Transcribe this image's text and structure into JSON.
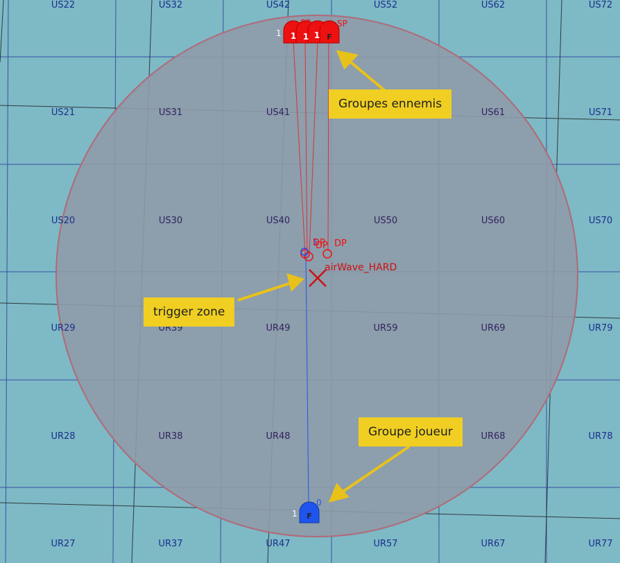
{
  "map": {
    "colors": {
      "sea": "#7eb9c6",
      "zone_fill": "#8f9ba8",
      "zone_border": "#b06a78",
      "grid_blue": "#2b3f9a",
      "grid_black": "#1c1c1c",
      "label_top": "#1a2f8a",
      "label_inside": "#32235e",
      "enemy_red": "#ee1111",
      "player_blue": "#1f55ee",
      "callout_bg": "#f0cf22",
      "callout_arrow": "#e8c21a"
    },
    "grid_labels": [
      {
        "text": "US22",
        "col": 0,
        "row": 0
      },
      {
        "text": "US32",
        "col": 1,
        "row": 0
      },
      {
        "text": "US42",
        "col": 2,
        "row": 0
      },
      {
        "text": "US52",
        "col": 3,
        "row": 0
      },
      {
        "text": "US62",
        "col": 4,
        "row": 0
      },
      {
        "text": "US72",
        "col": 5,
        "row": 0
      },
      {
        "text": "US21",
        "col": 0,
        "row": 1
      },
      {
        "text": "US31",
        "col": 1,
        "row": 1
      },
      {
        "text": "US41",
        "col": 2,
        "row": 1
      },
      {
        "text": "US51",
        "col": 3,
        "row": 1
      },
      {
        "text": "US61",
        "col": 4,
        "row": 1
      },
      {
        "text": "US71",
        "col": 5,
        "row": 1
      },
      {
        "text": "US20",
        "col": 0,
        "row": 2
      },
      {
        "text": "US30",
        "col": 1,
        "row": 2
      },
      {
        "text": "US40",
        "col": 2,
        "row": 2
      },
      {
        "text": "US50",
        "col": 3,
        "row": 2
      },
      {
        "text": "US60",
        "col": 4,
        "row": 2
      },
      {
        "text": "US70",
        "col": 5,
        "row": 2
      },
      {
        "text": "UR29",
        "col": 0,
        "row": 3
      },
      {
        "text": "UR39",
        "col": 1,
        "row": 3
      },
      {
        "text": "UR49",
        "col": 2,
        "row": 3
      },
      {
        "text": "UR59",
        "col": 3,
        "row": 3
      },
      {
        "text": "UR69",
        "col": 4,
        "row": 3
      },
      {
        "text": "UR79",
        "col": 5,
        "row": 3
      },
      {
        "text": "UR28",
        "col": 0,
        "row": 4
      },
      {
        "text": "UR38",
        "col": 1,
        "row": 4
      },
      {
        "text": "UR48",
        "col": 2,
        "row": 4
      },
      {
        "text": "UR58",
        "col": 3,
        "row": 4
      },
      {
        "text": "UR68",
        "col": 4,
        "row": 4
      },
      {
        "text": "UR78",
        "col": 5,
        "row": 4
      },
      {
        "text": "UR27",
        "col": 0,
        "row": 5
      },
      {
        "text": "UR37",
        "col": 1,
        "row": 5
      },
      {
        "text": "UR47",
        "col": 2,
        "row": 5
      },
      {
        "text": "UR57",
        "col": 3,
        "row": 5
      },
      {
        "text": "UR67",
        "col": 4,
        "row": 5
      },
      {
        "text": "UR77",
        "col": 5,
        "row": 5
      }
    ],
    "enemy_groups": [
      {
        "unit_letter": "1",
        "size_label": "1",
        "sp_label": "SP",
        "dp_label": "DP"
      },
      {
        "unit_letter": "1",
        "size_label": "",
        "sp_label": "SP",
        "dp_label": "DP"
      },
      {
        "unit_letter": "1",
        "size_label": "",
        "sp_label": "SP",
        "dp_label": ""
      },
      {
        "unit_letter": "F",
        "size_label": "",
        "sp_label": "SP",
        "dp_label": "DP"
      }
    ],
    "player_group": {
      "unit_letter": "F",
      "size_label": "1",
      "waypoint_label": "0",
      "dp_marker_label": "1"
    },
    "trigger_zone": {
      "name": "airWave_HARD"
    },
    "callouts": {
      "enemy": "Groupes ennemis",
      "trigger": "trigger zone",
      "player": "Groupe joueur"
    }
  }
}
